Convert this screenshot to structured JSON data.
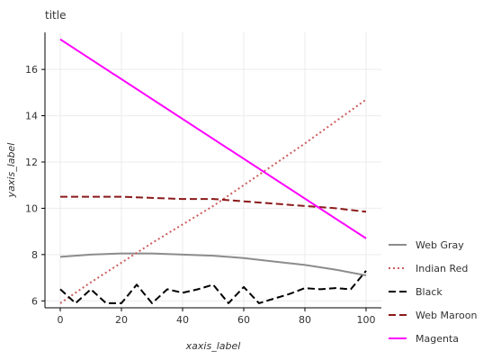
{
  "chart_data": {
    "type": "line",
    "title": "title",
    "xlabel": "xaxis_label",
    "ylabel": "yaxis_label",
    "xlim": [
      -5,
      105
    ],
    "ylim": [
      5.7,
      17.6
    ],
    "x_ticks": [
      0,
      20,
      40,
      60,
      80,
      100
    ],
    "y_ticks": [
      6,
      8,
      10,
      12,
      14,
      16
    ],
    "grid": true,
    "legend_position": "right",
    "series": [
      {
        "name": "Web Gray",
        "color": "#8c8c8c",
        "dash": "solid",
        "x": [
          0,
          10,
          20,
          30,
          40,
          50,
          60,
          70,
          80,
          90,
          100
        ],
        "y": [
          7.9,
          8.0,
          8.05,
          8.05,
          8.0,
          7.95,
          7.85,
          7.7,
          7.55,
          7.35,
          7.1
        ]
      },
      {
        "name": "Indian Red",
        "color": "#cd5c5c",
        "dash": "dotted",
        "x": [
          0,
          10,
          20,
          30,
          40,
          50,
          60,
          70,
          80,
          90,
          100
        ],
        "y": [
          5.9,
          6.8,
          7.65,
          8.5,
          9.3,
          10.1,
          11.0,
          11.9,
          12.8,
          13.75,
          14.7
        ]
      },
      {
        "name": "Black",
        "color": "#000000",
        "dash": "dashed",
        "x": [
          0,
          5,
          10,
          15,
          20,
          25,
          30,
          35,
          40,
          45,
          50,
          55,
          60,
          65,
          70,
          75,
          80,
          85,
          90,
          95,
          100
        ],
        "y": [
          6.5,
          5.9,
          6.5,
          5.9,
          5.9,
          6.7,
          5.9,
          6.5,
          6.35,
          6.5,
          6.7,
          5.9,
          6.6,
          5.9,
          6.1,
          6.3,
          6.55,
          6.5,
          6.55,
          6.5,
          7.3
        ]
      },
      {
        "name": "Web Maroon",
        "color": "#8b1a1a",
        "dash": "dashed",
        "x": [
          0,
          10,
          20,
          30,
          40,
          50,
          60,
          70,
          80,
          90,
          100
        ],
        "y": [
          10.5,
          10.5,
          10.5,
          10.45,
          10.4,
          10.4,
          10.3,
          10.2,
          10.1,
          10.0,
          9.85
        ]
      },
      {
        "name": "Magenta",
        "color": "#ff00ff",
        "dash": "solid",
        "x": [
          0,
          100
        ],
        "y": [
          17.3,
          8.7
        ]
      }
    ]
  }
}
